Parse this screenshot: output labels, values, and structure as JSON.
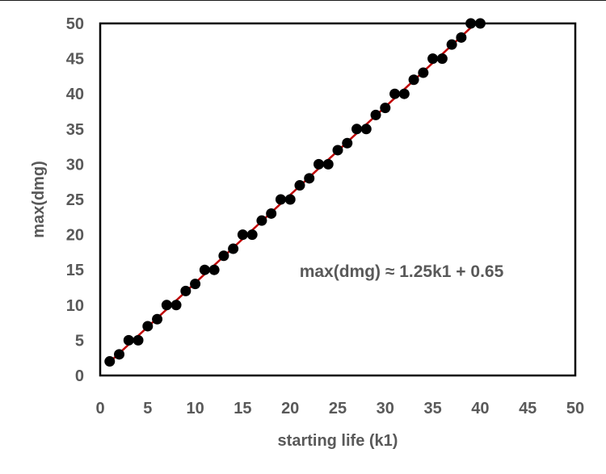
{
  "chart_data": {
    "type": "scatter",
    "title": "",
    "xlabel": "starting life (k1)",
    "ylabel": "max(dmg)",
    "xlim": [
      0,
      50
    ],
    "ylim": [
      0,
      50
    ],
    "xticks": [
      "0",
      "5",
      "10",
      "15",
      "20",
      "25",
      "30",
      "35",
      "40",
      "45",
      "50"
    ],
    "yticks": [
      "0",
      "5",
      "10",
      "15",
      "20",
      "25",
      "30",
      "35",
      "40",
      "45",
      "50"
    ],
    "grid": false,
    "legend": "none",
    "annotation": "max(dmg) ≈ 1.25k1 + 0.65",
    "series": [
      {
        "marker_color": "#000000",
        "x": [
          1,
          2,
          3,
          4,
          5,
          6,
          7,
          8,
          9,
          10,
          11,
          12,
          13,
          14,
          15,
          16,
          17,
          18,
          19,
          20,
          21,
          22,
          23,
          24,
          25,
          26,
          27,
          28,
          29,
          30,
          31,
          32,
          33,
          34,
          35,
          36,
          37,
          38,
          39,
          40
        ],
        "y": [
          2,
          3,
          5,
          5,
          7,
          8,
          10,
          10,
          12,
          13,
          15,
          15,
          17,
          18,
          20,
          20,
          22,
          23,
          25,
          25,
          27,
          28,
          30,
          30,
          32,
          33,
          35,
          35,
          37,
          38,
          40,
          40,
          42,
          43,
          45,
          45,
          47,
          48,
          50,
          50
        ]
      }
    ],
    "fit_line": {
      "color": "#c00000",
      "slope": 1.25,
      "intercept": 0.65,
      "x_range": [
        1,
        39.5
      ]
    }
  }
}
